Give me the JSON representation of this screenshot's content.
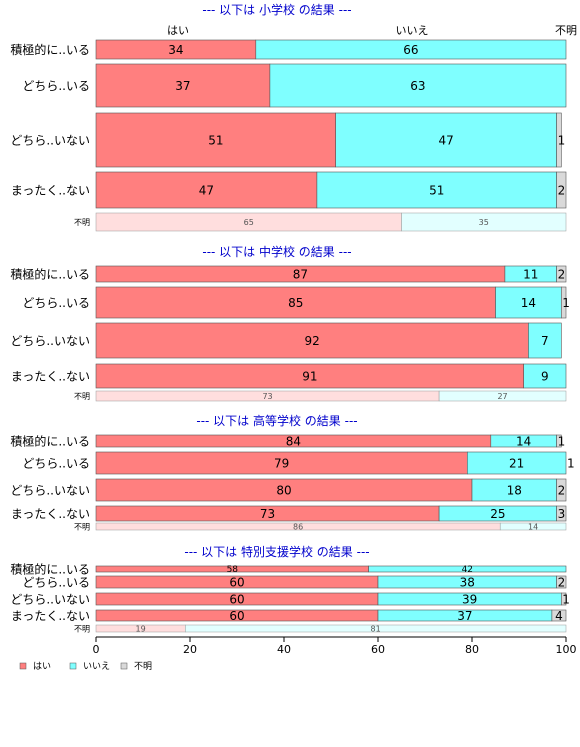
{
  "chart_data": {
    "type": "bar",
    "orientation": "horizontal",
    "stacked": true,
    "percent": true,
    "column_headers": [
      "はい",
      "いいえ",
      "不明"
    ],
    "x_ticks": [
      "0",
      "20",
      "40",
      "60",
      "80",
      "100"
    ],
    "xlim": [
      0,
      100
    ],
    "grid": false,
    "legend_position": "bottom-left",
    "colors": {
      "yes": "#ff7f7f",
      "no": "#7fffff",
      "unknown": "#d9d9d9",
      "title": "#0000cc"
    },
    "legend": [
      {
        "label": "はい",
        "color": "#ff7f7f"
      },
      {
        "label": "いいえ",
        "color": "#7fffff"
      },
      {
        "label": "不明",
        "color": "#d9d9d9"
      }
    ],
    "panels": [
      {
        "title": "--- 以下は 小学校 の結果 ---",
        "rows": [
          {
            "label": "積極的に..いる",
            "values": [
              34,
              66,
              0
            ],
            "labels": [
              "34",
              "66",
              ""
            ]
          },
          {
            "label": "どちら..いる",
            "values": [
              37,
              63,
              0
            ],
            "labels": [
              "37",
              "63",
              ""
            ]
          },
          {
            "label": "どちら..いない",
            "values": [
              51,
              47,
              1
            ],
            "labels": [
              "51",
              "47",
              "1"
            ]
          },
          {
            "label": "まったく..ない",
            "values": [
              47,
              51,
              2
            ],
            "labels": [
              "47",
              "51",
              "2"
            ]
          }
        ],
        "unknown_row": {
          "label": "不明",
          "values": [
            65,
            35
          ],
          "labels": [
            "65",
            "35"
          ]
        }
      },
      {
        "title": "--- 以下は 中学校 の結果 ---",
        "rows": [
          {
            "label": "積極的に..いる",
            "values": [
              87,
              11,
              2
            ],
            "labels": [
              "87",
              "11",
              "2"
            ]
          },
          {
            "label": "どちら..いる",
            "values": [
              85,
              14,
              1
            ],
            "labels": [
              "85",
              "14",
              "1"
            ]
          },
          {
            "label": "どちら..いない",
            "values": [
              92,
              7,
              0
            ],
            "labels": [
              "92",
              "7",
              ""
            ]
          },
          {
            "label": "まったく..ない",
            "values": [
              91,
              9,
              0
            ],
            "labels": [
              "91",
              "9",
              ""
            ]
          }
        ],
        "unknown_row": {
          "label": "不明",
          "values": [
            73,
            27
          ],
          "labels": [
            "73",
            "27"
          ]
        }
      },
      {
        "title": "--- 以下は 高等学校 の結果 ---",
        "rows": [
          {
            "label": "積極的に..いる",
            "values": [
              84,
              14,
              1
            ],
            "labels": [
              "84",
              "14",
              "1"
            ]
          },
          {
            "label": "どちら..いる",
            "values": [
              79,
              21,
              1
            ],
            "labels": [
              "79",
              "21",
              "1"
            ]
          },
          {
            "label": "どちら..いない",
            "values": [
              80,
              18,
              2
            ],
            "labels": [
              "80",
              "18",
              "2"
            ]
          },
          {
            "label": "まったく..ない",
            "values": [
              73,
              25,
              3
            ],
            "labels": [
              "73",
              "25",
              "3"
            ]
          }
        ],
        "unknown_row": {
          "label": "不明",
          "values": [
            86,
            14
          ],
          "labels": [
            "86",
            "14"
          ]
        }
      },
      {
        "title": "--- 以下は 特別支援学校 の結果 ---",
        "rows": [
          {
            "label": "積極的に..いる",
            "values": [
              58,
              42,
              0
            ],
            "labels": [
              "58",
              "42",
              ""
            ]
          },
          {
            "label": "どちら..いる",
            "values": [
              60,
              38,
              2
            ],
            "labels": [
              "60",
              "38",
              "2"
            ]
          },
          {
            "label": "どちら..いない",
            "values": [
              60,
              39,
              1
            ],
            "labels": [
              "60",
              "39",
              "1"
            ]
          },
          {
            "label": "まったく..ない",
            "values": [
              60,
              37,
              4
            ],
            "labels": [
              "60",
              "37",
              "4"
            ]
          }
        ],
        "unknown_row": {
          "label": "不明",
          "values": [
            19,
            81
          ],
          "labels": [
            "19",
            "81"
          ]
        }
      }
    ]
  }
}
